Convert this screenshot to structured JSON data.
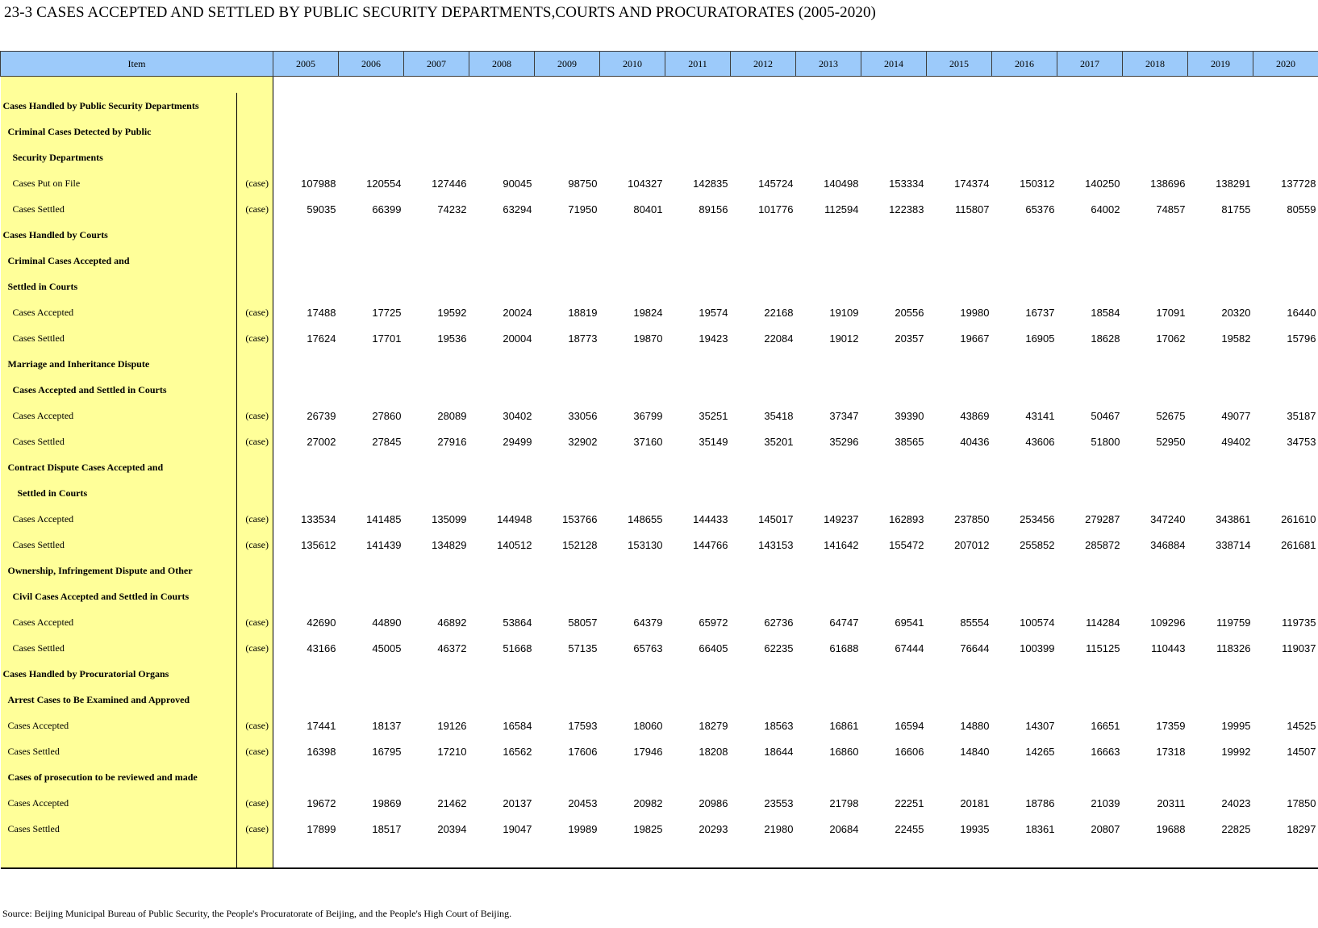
{
  "title": "23-3  CASES ACCEPTED AND SETTLED BY PUBLIC SECURITY DEPARTMENTS,COURTS AND PROCURATORATES (2005-2020)",
  "header": {
    "item": "Item",
    "years": [
      "2005",
      "2006",
      "2007",
      "2008",
      "2009",
      "2010",
      "2011",
      "2012",
      "2013",
      "2014",
      "2015",
      "2016",
      "2017",
      "2018",
      "2019",
      "2020"
    ]
  },
  "rows": [
    {
      "label": "",
      "unit": "",
      "values": []
    },
    {
      "label": "Cases Handled by Public Security Departments",
      "bold": true,
      "indent": 0,
      "unit": "",
      "values": []
    },
    {
      "label": "Criminal Cases Detected by Public",
      "bold": true,
      "indent": 1,
      "unit": "",
      "values": []
    },
    {
      "label": "Security Departments",
      "bold": true,
      "indent": 2,
      "unit": "",
      "values": []
    },
    {
      "label": "Cases Put on File",
      "indent": 2,
      "unit": "(case)",
      "values": [
        "107988",
        "120554",
        "127446",
        "90045",
        "98750",
        "104327",
        "142835",
        "145724",
        "140498",
        "153334",
        "174374",
        "150312",
        "140250",
        "138696",
        "138291",
        "137728"
      ]
    },
    {
      "label": "Cases Settled",
      "indent": 2,
      "unit": "(case)",
      "values": [
        "59035",
        "66399",
        "74232",
        "63294",
        "71950",
        "80401",
        "89156",
        "101776",
        "112594",
        "122383",
        "115807",
        "65376",
        "64002",
        "74857",
        "81755",
        "80559"
      ]
    },
    {
      "label": "Cases Handled by Courts",
      "bold": true,
      "indent": 0,
      "unit": "",
      "values": []
    },
    {
      "label": "Criminal Cases Accepted and",
      "bold": true,
      "indent": 1,
      "unit": "",
      "values": []
    },
    {
      "label": "Settled in Courts",
      "bold": true,
      "indent": 1,
      "unit": "",
      "values": []
    },
    {
      "label": "Cases Accepted",
      "indent": 2,
      "unit": "(case)",
      "values": [
        "17488",
        "17725",
        "19592",
        "20024",
        "18819",
        "19824",
        "19574",
        "22168",
        "19109",
        "20556",
        "19980",
        "16737",
        "18584",
        "17091",
        "20320",
        "16440"
      ]
    },
    {
      "label": "Cases Settled",
      "indent": 2,
      "unit": "(case)",
      "values": [
        "17624",
        "17701",
        "19536",
        "20004",
        "18773",
        "19870",
        "19423",
        "22084",
        "19012",
        "20357",
        "19667",
        "16905",
        "18628",
        "17062",
        "19582",
        "15796"
      ]
    },
    {
      "label": "Marriage and Inheritance Dispute",
      "bold": true,
      "indent": 1,
      "unit": "",
      "values": []
    },
    {
      "label": "Cases Accepted and Settled in Courts",
      "bold": true,
      "indent": 2,
      "unit": "",
      "values": []
    },
    {
      "label": "Cases Accepted",
      "indent": 2,
      "unit": "(case)",
      "values": [
        "26739",
        "27860",
        "28089",
        "30402",
        "33056",
        "36799",
        "35251",
        "35418",
        "37347",
        "39390",
        "43869",
        "43141",
        "50467",
        "52675",
        "49077",
        "35187"
      ]
    },
    {
      "label": "Cases Settled",
      "indent": 2,
      "unit": "(case)",
      "values": [
        "27002",
        "27845",
        "27916",
        "29499",
        "32902",
        "37160",
        "35149",
        "35201",
        "35296",
        "38565",
        "40436",
        "43606",
        "51800",
        "52950",
        "49402",
        "34753"
      ]
    },
    {
      "label": "Contract Dispute Cases Accepted and",
      "bold": true,
      "indent": 1,
      "unit": "",
      "values": []
    },
    {
      "label": "Settled in Courts",
      "bold": true,
      "indent": 3,
      "unit": "",
      "values": []
    },
    {
      "label": "Cases Accepted",
      "indent": 2,
      "unit": "(case)",
      "values": [
        "133534",
        "141485",
        "135099",
        "144948",
        "153766",
        "148655",
        "144433",
        "145017",
        "149237",
        "162893",
        "237850",
        "253456",
        "279287",
        "347240",
        "343861",
        "261610"
      ]
    },
    {
      "label": "Cases Settled",
      "indent": 2,
      "unit": "(case)",
      "values": [
        "135612",
        "141439",
        "134829",
        "140512",
        "152128",
        "153130",
        "144766",
        "143153",
        "141642",
        "155472",
        "207012",
        "255852",
        "285872",
        "346884",
        "338714",
        "261681"
      ]
    },
    {
      "label": "Ownership, Infringement Dispute and Other",
      "bold": true,
      "indent": 1,
      "unit": "",
      "values": []
    },
    {
      "label": "Civil Cases Accepted and Settled in Courts",
      "bold": true,
      "indent": 2,
      "unit": "",
      "values": []
    },
    {
      "label": "Cases Accepted",
      "indent": 2,
      "unit": "(case)",
      "values": [
        "42690",
        "44890",
        "46892",
        "53864",
        "58057",
        "64379",
        "65972",
        "62736",
        "64747",
        "69541",
        "85554",
        "100574",
        "114284",
        "109296",
        "119759",
        "119735"
      ]
    },
    {
      "label": "Cases Settled",
      "indent": 2,
      "unit": "(case)",
      "values": [
        "43166",
        "45005",
        "46372",
        "51668",
        "57135",
        "65763",
        "66405",
        "62235",
        "61688",
        "67444",
        "76644",
        "100399",
        "115125",
        "110443",
        "118326",
        "119037"
      ]
    },
    {
      "label": "Cases Handled by Procuratorial Organs",
      "bold": true,
      "indent": 0,
      "unit": "",
      "values": []
    },
    {
      "label": "Arrest Cases to Be Examined and Approved",
      "bold": true,
      "indent": 1,
      "unit": "",
      "values": []
    },
    {
      "label": "Cases Accepted",
      "indent": 1,
      "unit": "(case)",
      "values": [
        "17441",
        "18137",
        "19126",
        "16584",
        "17593",
        "18060",
        "18279",
        "18563",
        "16861",
        "16594",
        "14880",
        "14307",
        "16651",
        "17359",
        "19995",
        "14525"
      ]
    },
    {
      "label": "Cases Settled",
      "indent": 1,
      "unit": "(case)",
      "values": [
        "16398",
        "16795",
        "17210",
        "16562",
        "17606",
        "17946",
        "18208",
        "18644",
        "16860",
        "16606",
        "14840",
        "14265",
        "16663",
        "17318",
        "19992",
        "14507"
      ]
    },
    {
      "label": "Cases of prosecution to be reviewed and made",
      "bold": true,
      "indent": 1,
      "unit": "",
      "values": []
    },
    {
      "label": "Cases Accepted",
      "indent": 1,
      "unit": "(case)",
      "values": [
        "19672",
        "19869",
        "21462",
        "20137",
        "20453",
        "20982",
        "20986",
        "23553",
        "21798",
        "22251",
        "20181",
        "18786",
        "21039",
        "20311",
        "24023",
        "17850"
      ]
    },
    {
      "label": "Cases Settled",
      "indent": 1,
      "unit": "(case)",
      "values": [
        "17899",
        "18517",
        "20394",
        "19047",
        "19989",
        "19825",
        "20293",
        "21980",
        "20684",
        "22455",
        "19935",
        "18361",
        "20807",
        "19688",
        "22825",
        "18297"
      ]
    },
    {
      "label": "",
      "unit": "",
      "values": []
    }
  ],
  "source": "Source: Beijing Municipal Bureau of Public Security, the People's Procuratorate of Beijing, and the People's High Court of Beijing."
}
